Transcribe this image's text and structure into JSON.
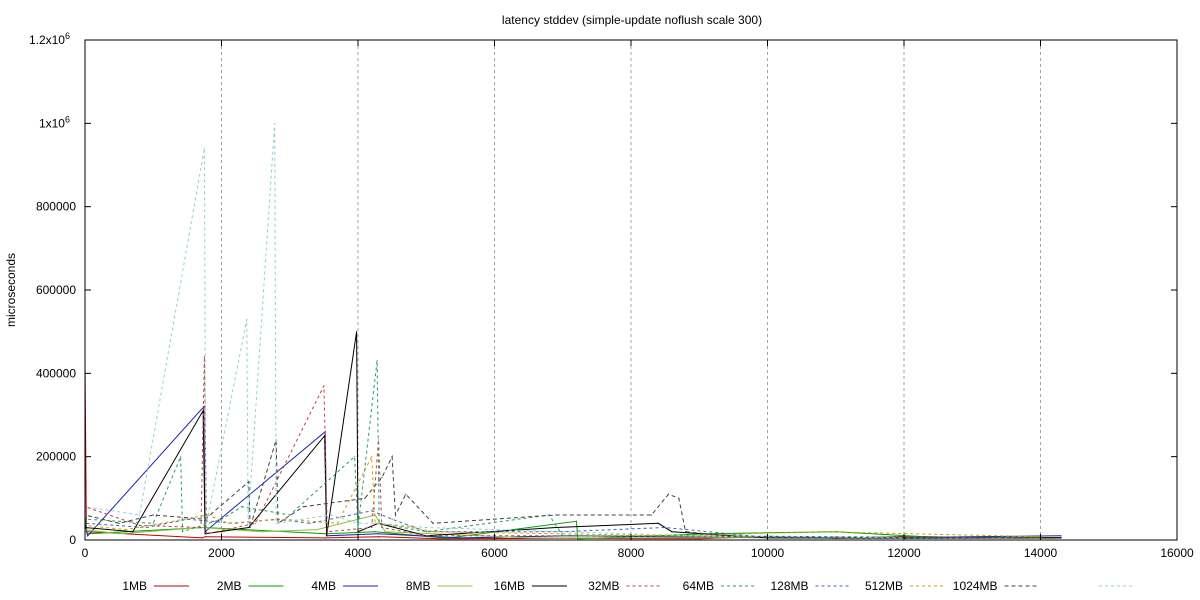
{
  "chart_data": {
    "type": "line",
    "title": "latency stddev (simple-update noflush scale 300)",
    "ylabel": "microseconds",
    "xlabel": "",
    "xlim": [
      0,
      16000
    ],
    "ylim": [
      0,
      1200000
    ],
    "x_ticks": [
      0,
      2000,
      4000,
      6000,
      8000,
      10000,
      12000,
      14000,
      16000
    ],
    "y_ticks": [
      {
        "value": 0,
        "label": "0"
      },
      {
        "value": 200000,
        "label": "200000"
      },
      {
        "value": 400000,
        "label": "400000"
      },
      {
        "value": 600000,
        "label": "600000"
      },
      {
        "value": 800000,
        "label": "800000"
      },
      {
        "value": 1000000,
        "label": "1x10",
        "sup": "6"
      },
      {
        "value": 1200000,
        "label": "1.2x10",
        "sup": "6"
      }
    ],
    "grid": "x-only dashed",
    "legend_position": "bottom",
    "series": [
      {
        "name": "1MB",
        "color": "#c00000",
        "dash": "solid",
        "values": [
          [
            0,
            430000
          ],
          [
            20,
            20000
          ],
          [
            1720,
            5000
          ],
          [
            1760,
            8000
          ],
          [
            3520,
            5000
          ],
          [
            4300,
            8000
          ],
          [
            5200,
            3000
          ],
          [
            7000,
            4000
          ],
          [
            9000,
            3000
          ],
          [
            10000,
            9000
          ],
          [
            11000,
            4000
          ],
          [
            12100,
            9000
          ],
          [
            13000,
            5000
          ],
          [
            14300,
            6000
          ]
        ]
      },
      {
        "name": "2MB",
        "color": "#00a000",
        "dash": "solid",
        "values": [
          [
            0,
            60000
          ],
          [
            30,
            15000
          ],
          [
            1750,
            30000
          ],
          [
            3530,
            15000
          ],
          [
            4250,
            20000
          ],
          [
            5300,
            4000
          ],
          [
            7200,
            45000
          ],
          [
            7220,
            3000
          ],
          [
            9100,
            15000
          ],
          [
            11000,
            20000
          ],
          [
            12300,
            8000
          ],
          [
            13200,
            6000
          ],
          [
            14300,
            5000
          ]
        ]
      },
      {
        "name": "4MB",
        "color": "#2020b0",
        "dash": "solid",
        "values": [
          [
            0,
            40000
          ],
          [
            40,
            10000
          ],
          [
            1740,
            320000
          ],
          [
            1760,
            20000
          ],
          [
            3520,
            260000
          ],
          [
            3540,
            10000
          ],
          [
            4300,
            15000
          ],
          [
            5500,
            5000
          ],
          [
            7100,
            10000
          ],
          [
            9500,
            6000
          ],
          [
            11500,
            5000
          ],
          [
            13000,
            8000
          ],
          [
            14300,
            10000
          ]
        ]
      },
      {
        "name": "8MB",
        "color": "#90c040",
        "dash": "solid",
        "values": [
          [
            0,
            25000
          ],
          [
            500,
            15000
          ],
          [
            1700,
            30000
          ],
          [
            2600,
            20000
          ],
          [
            3400,
            25000
          ],
          [
            4250,
            60000
          ],
          [
            4400,
            20000
          ],
          [
            6500,
            5000
          ],
          [
            8000,
            5000
          ],
          [
            10500,
            6000
          ],
          [
            12500,
            5000
          ],
          [
            14200,
            4000
          ]
        ]
      },
      {
        "name": "16MB",
        "color": "#000000",
        "dash": "solid",
        "values": [
          [
            0,
            30000
          ],
          [
            700,
            20000
          ],
          [
            1730,
            310000
          ],
          [
            1760,
            15000
          ],
          [
            2400,
            30000
          ],
          [
            3510,
            250000
          ],
          [
            3540,
            10000
          ],
          [
            3980,
            500000
          ],
          [
            4000,
            20000
          ],
          [
            4300,
            40000
          ],
          [
            5000,
            10000
          ],
          [
            6900,
            30000
          ],
          [
            8400,
            40000
          ],
          [
            8600,
            20000
          ],
          [
            10000,
            5000
          ],
          [
            12000,
            4000
          ],
          [
            14300,
            5000
          ]
        ]
      },
      {
        "name": "32MB",
        "color": "#c04040",
        "dash": "3,3",
        "values": [
          [
            0,
            80000
          ],
          [
            800,
            35000
          ],
          [
            1700,
            30000
          ],
          [
            1750,
            440000
          ],
          [
            1780,
            15000
          ],
          [
            2500,
            40000
          ],
          [
            3500,
            370000
          ],
          [
            3550,
            20000
          ],
          [
            4200,
            30000
          ],
          [
            4300,
            240000
          ],
          [
            4350,
            30000
          ],
          [
            5000,
            10000
          ],
          [
            7000,
            10000
          ],
          [
            9000,
            8000
          ],
          [
            12000,
            5000
          ],
          [
            14000,
            4000
          ]
        ]
      },
      {
        "name": "64MB",
        "color": "#20a060",
        "dash": "3,3",
        "values": [
          [
            0,
            50000
          ],
          [
            1000,
            40000
          ],
          [
            1400,
            200000
          ],
          [
            1430,
            20000
          ],
          [
            2000,
            50000
          ],
          [
            2300,
            80000
          ],
          [
            3000,
            60000
          ],
          [
            3950,
            200000
          ],
          [
            4000,
            30000
          ],
          [
            4280,
            430000
          ],
          [
            4310,
            40000
          ],
          [
            5000,
            20000
          ],
          [
            6800,
            60000
          ],
          [
            7000,
            10000
          ],
          [
            9000,
            10000
          ],
          [
            11000,
            8000
          ],
          [
            14000,
            5000
          ]
        ]
      },
      {
        "name": "128MB",
        "color": "#4060c0",
        "dash": "3,3",
        "values": [
          [
            0,
            40000
          ],
          [
            900,
            30000
          ],
          [
            1500,
            50000
          ],
          [
            2200,
            40000
          ],
          [
            2800,
            50000
          ],
          [
            3300,
            40000
          ],
          [
            4200,
            70000
          ],
          [
            4500,
            50000
          ],
          [
            5000,
            20000
          ],
          [
            7000,
            20000
          ],
          [
            8500,
            30000
          ],
          [
            10000,
            6000
          ],
          [
            13000,
            5000
          ]
        ]
      },
      {
        "name": "512MB",
        "color": "#d0a000",
        "dash": "3,3",
        "values": [
          [
            0,
            35000
          ],
          [
            600,
            25000
          ],
          [
            1800,
            60000
          ],
          [
            2100,
            40000
          ],
          [
            2900,
            50000
          ],
          [
            3700,
            40000
          ],
          [
            4200,
            200000
          ],
          [
            4250,
            40000
          ],
          [
            4800,
            30000
          ],
          [
            5100,
            20000
          ],
          [
            7000,
            15000
          ],
          [
            8600,
            10000
          ],
          [
            10800,
            20000
          ],
          [
            14000,
            8000
          ]
        ]
      },
      {
        "name": "1024MB",
        "color": "#404040",
        "dash": "4,3",
        "values": [
          [
            0,
            60000
          ],
          [
            500,
            40000
          ],
          [
            1000,
            60000
          ],
          [
            1760,
            50000
          ],
          [
            2400,
            140000
          ],
          [
            2420,
            30000
          ],
          [
            2800,
            240000
          ],
          [
            2830,
            40000
          ],
          [
            3200,
            80000
          ],
          [
            4100,
            100000
          ],
          [
            4350,
            150000
          ],
          [
            4500,
            200000
          ],
          [
            4550,
            60000
          ],
          [
            4700,
            110000
          ],
          [
            5100,
            40000
          ],
          [
            6900,
            60000
          ],
          [
            8300,
            60000
          ],
          [
            8550,
            110000
          ],
          [
            8700,
            100000
          ],
          [
            8800,
            20000
          ],
          [
            9500,
            8000
          ],
          [
            12000,
            6000
          ],
          [
            14000,
            5000
          ]
        ]
      },
      {
        "name": "",
        "color": "#90d0d0",
        "dash": "3,3",
        "values": [
          [
            0,
            80000
          ],
          [
            800,
            60000
          ],
          [
            1750,
            940000
          ],
          [
            1770,
            30000
          ],
          [
            2370,
            530000
          ],
          [
            2390,
            40000
          ],
          [
            2780,
            1000000
          ],
          [
            2800,
            40000
          ],
          [
            3600,
            60000
          ],
          [
            4000,
            40000
          ],
          [
            4300,
            40000
          ],
          [
            5000,
            30000
          ],
          [
            7000,
            20000
          ],
          [
            9000,
            10000
          ],
          [
            12000,
            5000
          ]
        ]
      }
    ]
  }
}
